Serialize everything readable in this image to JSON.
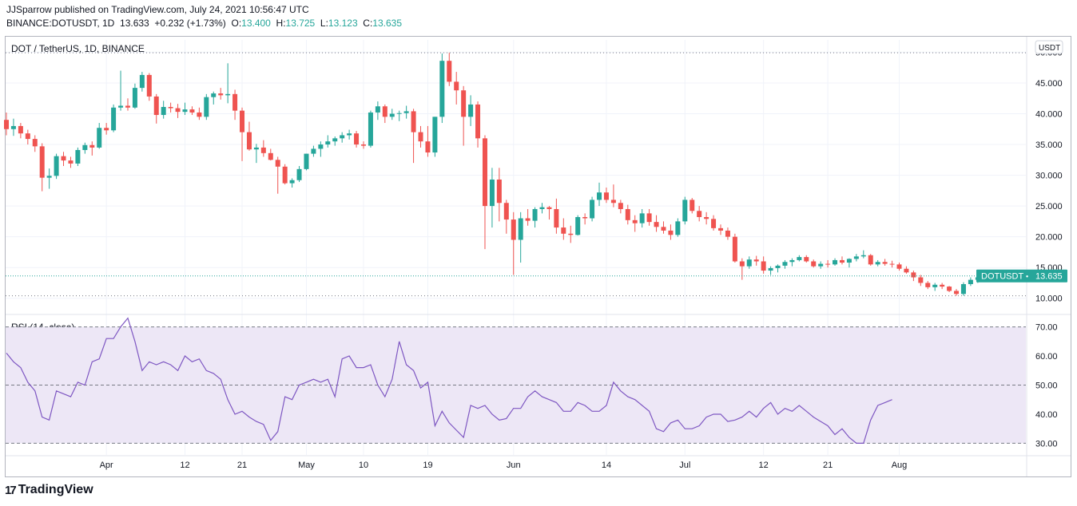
{
  "header": {
    "published_by": "JJSparrow published on TradingView.com, July 24, 2021 10:56:47 UTC",
    "symbol": "BINANCE:DOTUSDT, 1D",
    "last": "13.633",
    "change": "+0.232 (+1.73%)",
    "o_label": "O:",
    "o_value": "13.400",
    "h_label": "H:",
    "h_value": "13.725",
    "l_label": "L:",
    "l_value": "13.123",
    "c_label": "C:",
    "c_value": "13.635"
  },
  "colors": {
    "up": "#26a69a",
    "down": "#ef5350",
    "rsi_line": "#7e57c2",
    "rsi_band": "#ede7f6",
    "grid": "#f0f3fa",
    "axis_text": "#131722"
  },
  "brand": {
    "logo": "17",
    "name": "TradingView"
  },
  "chart_data": [
    {
      "type": "candlestick",
      "title": "DOT / TetherUS, 1D, BINANCE",
      "currency_badge": "USDT",
      "price_label": "DOTUSDT",
      "price_value": "13.635",
      "last_price": 13.635,
      "ylim": [
        7.5,
        52
      ],
      "y_ticks": [
        "50.000",
        "45.000",
        "40.000",
        "35.000",
        "30.000",
        "25.000",
        "20.000",
        "15.000",
        "10.000"
      ],
      "y_tick_values": [
        50,
        45,
        40,
        35,
        30,
        25,
        20,
        15,
        10
      ],
      "x_ticks": [
        "Apr",
        "12",
        "21",
        "May",
        "10",
        "19",
        "Jun",
        "14",
        "Jul",
        "12",
        "21",
        "Aug"
      ],
      "x_tick_days": [
        14,
        25,
        33,
        42,
        50,
        59,
        71,
        84,
        95,
        106,
        115,
        125
      ],
      "start_date": "2021-03-18",
      "candles": [
        [
          39.0,
          40.2,
          36.5,
          37.5
        ],
        [
          37.5,
          39.2,
          36.4,
          38.0
        ],
        [
          38.0,
          38.5,
          36.0,
          36.8
        ],
        [
          36.8,
          37.4,
          35.0,
          35.9
        ],
        [
          35.9,
          36.5,
          33.8,
          34.7
        ],
        [
          34.7,
          35.2,
          27.4,
          29.6
        ],
        [
          29.6,
          31.1,
          27.8,
          29.9
        ],
        [
          29.9,
          33.5,
          29.4,
          33.1
        ],
        [
          33.1,
          33.8,
          31.5,
          32.4
        ],
        [
          32.4,
          33.0,
          31.2,
          31.9
        ],
        [
          31.9,
          34.5,
          31.5,
          34.1
        ],
        [
          34.1,
          35.3,
          33.5,
          34.9
        ],
        [
          34.9,
          35.5,
          33.2,
          34.5
        ],
        [
          34.5,
          38.5,
          34.3,
          37.7
        ],
        [
          37.7,
          38.5,
          36.6,
          37.3
        ],
        [
          37.3,
          41.5,
          37.0,
          41.0
        ],
        [
          41.0,
          47.0,
          40.5,
          41.3
        ],
        [
          41.3,
          42.5,
          40.5,
          41.0
        ],
        [
          41.0,
          44.9,
          40.8,
          44.2
        ],
        [
          44.2,
          46.8,
          43.6,
          46.3
        ],
        [
          46.3,
          46.6,
          42.1,
          42.8
        ],
        [
          42.8,
          43.2,
          38.4,
          39.8
        ],
        [
          39.8,
          42.1,
          39.2,
          41.1
        ],
        [
          41.1,
          41.8,
          40.2,
          40.9
        ],
        [
          40.9,
          41.6,
          39.3,
          40.3
        ],
        [
          40.3,
          41.8,
          39.8,
          40.7
        ],
        [
          40.7,
          41.2,
          39.8,
          40.2
        ],
        [
          40.2,
          41.0,
          39.0,
          39.5
        ],
        [
          39.5,
          43.2,
          39.0,
          42.7
        ],
        [
          42.7,
          43.6,
          41.5,
          43.3
        ],
        [
          43.3,
          44.2,
          42.3,
          43.0
        ],
        [
          43.0,
          48.2,
          41.7,
          43.2
        ],
        [
          43.2,
          43.9,
          39.0,
          40.5
        ],
        [
          40.5,
          41.0,
          32.3,
          37.0
        ],
        [
          37.0,
          38.7,
          34.0,
          34.2
        ],
        [
          34.2,
          35.1,
          32.0,
          34.5
        ],
        [
          34.5,
          35.7,
          33.0,
          33.6
        ],
        [
          33.6,
          34.3,
          32.4,
          32.5
        ],
        [
          32.5,
          33.0,
          27.0,
          31.4
        ],
        [
          31.4,
          31.8,
          28.5,
          28.7
        ],
        [
          28.7,
          29.5,
          28.0,
          29.2
        ],
        [
          29.2,
          31.5,
          28.9,
          31.0
        ],
        [
          31.0,
          33.5,
          30.8,
          33.5
        ],
        [
          33.5,
          34.8,
          33.0,
          34.3
        ],
        [
          34.3,
          35.5,
          33.0,
          35.0
        ],
        [
          35.0,
          36.5,
          34.5,
          35.5
        ],
        [
          35.5,
          36.3,
          34.8,
          36.0
        ],
        [
          36.0,
          37.0,
          35.3,
          36.5
        ],
        [
          36.5,
          37.4,
          35.8,
          36.8
        ],
        [
          36.8,
          37.2,
          34.5,
          35.0
        ],
        [
          35.0,
          35.5,
          34.3,
          34.8
        ],
        [
          34.8,
          40.5,
          34.5,
          40.2
        ],
        [
          40.2,
          42.0,
          39.0,
          41.2
        ],
        [
          41.2,
          41.5,
          38.5,
          39.5
        ],
        [
          39.5,
          40.8,
          39.0,
          40.0
        ],
        [
          40.0,
          40.5,
          38.8,
          40.1
        ],
        [
          40.1,
          41.3,
          39.2,
          40.4
        ],
        [
          40.4,
          40.8,
          32.0,
          37.0
        ],
        [
          37.0,
          38.0,
          34.5,
          35.5
        ],
        [
          35.5,
          38.0,
          33.0,
          33.7
        ],
        [
          33.7,
          39.5,
          33.0,
          39.5
        ],
        [
          39.5,
          49.8,
          38.5,
          48.6
        ],
        [
          48.6,
          49.9,
          44.5,
          45.2
        ],
        [
          45.2,
          46.8,
          41.5,
          43.8
        ],
        [
          43.8,
          44.5,
          34.8,
          39.5
        ],
        [
          39.5,
          43.0,
          38.0,
          41.5
        ],
        [
          41.5,
          42.0,
          34.5,
          36.0
        ],
        [
          36.0,
          36.5,
          18.0,
          25.0
        ],
        [
          25.0,
          31.2,
          21.5,
          29.3
        ],
        [
          29.3,
          31.2,
          22.5,
          25.5
        ],
        [
          25.5,
          26.0,
          20.5,
          22.8
        ],
        [
          22.8,
          24.0,
          13.8,
          19.5
        ],
        [
          19.5,
          24.0,
          15.8,
          23.0
        ],
        [
          23.0,
          24.5,
          21.8,
          22.6
        ],
        [
          22.6,
          24.8,
          21.5,
          24.5
        ],
        [
          24.5,
          25.5,
          23.8,
          24.8
        ],
        [
          24.8,
          25.0,
          22.8,
          24.5
        ],
        [
          24.5,
          26.2,
          20.5,
          21.5
        ],
        [
          21.5,
          23.0,
          19.5,
          20.5
        ],
        [
          20.5,
          21.8,
          19.0,
          20.3
        ],
        [
          20.3,
          23.5,
          20.2,
          23.2
        ],
        [
          23.2,
          23.8,
          22.0,
          23.0
        ],
        [
          23.0,
          26.5,
          22.5,
          26.0
        ],
        [
          26.0,
          28.8,
          25.0,
          27.2
        ],
        [
          27.2,
          28.0,
          25.5,
          26.0
        ],
        [
          26.0,
          28.5,
          24.8,
          25.5
        ],
        [
          25.5,
          26.0,
          23.8,
          24.5
        ],
        [
          24.5,
          25.2,
          22.0,
          22.7
        ],
        [
          22.7,
          23.5,
          20.8,
          22.2
        ],
        [
          22.2,
          24.5,
          21.5,
          23.8
        ],
        [
          23.8,
          24.5,
          21.8,
          22.4
        ],
        [
          22.4,
          23.5,
          20.8,
          21.6
        ],
        [
          21.6,
          22.5,
          20.5,
          21.0
        ],
        [
          21.0,
          22.0,
          19.5,
          20.3
        ],
        [
          20.3,
          23.0,
          20.0,
          22.5
        ],
        [
          22.5,
          26.5,
          22.0,
          26.0
        ],
        [
          26.0,
          26.3,
          23.8,
          24.2
        ],
        [
          24.2,
          25.0,
          22.5,
          23.2
        ],
        [
          23.2,
          24.0,
          22.0,
          22.9
        ],
        [
          22.9,
          23.5,
          21.0,
          21.4
        ],
        [
          21.4,
          22.0,
          20.3,
          21.0
        ],
        [
          21.0,
          21.5,
          19.5,
          20.0
        ],
        [
          20.0,
          20.5,
          15.8,
          16.0
        ],
        [
          16.0,
          16.5,
          13.0,
          15.2
        ],
        [
          15.2,
          16.8,
          14.8,
          16.3
        ],
        [
          16.3,
          16.9,
          15.3,
          16.0
        ],
        [
          16.0,
          16.8,
          14.0,
          14.5
        ],
        [
          14.5,
          15.2,
          13.8,
          14.9
        ],
        [
          14.9,
          15.5,
          14.2,
          15.3
        ],
        [
          15.3,
          16.2,
          14.8,
          15.9
        ],
        [
          15.9,
          16.5,
          15.2,
          16.2
        ],
        [
          16.2,
          17.0,
          16.0,
          16.7
        ],
        [
          16.7,
          17.0,
          15.8,
          16.0
        ],
        [
          16.0,
          16.3,
          15.0,
          15.2
        ],
        [
          15.2,
          16.0,
          14.8,
          15.6
        ],
        [
          15.6,
          16.2,
          15.0,
          15.5
        ],
        [
          15.5,
          16.5,
          15.3,
          16.2
        ],
        [
          16.2,
          16.8,
          15.5,
          15.8
        ],
        [
          15.8,
          16.5,
          15.0,
          16.4
        ],
        [
          16.4,
          17.2,
          16.0,
          16.8
        ],
        [
          16.8,
          17.8,
          16.5,
          17.0
        ],
        [
          17.0,
          17.2,
          15.3,
          15.5
        ],
        [
          15.5,
          16.2,
          15.2,
          15.9
        ],
        [
          15.9,
          16.4,
          15.3,
          15.6
        ],
        [
          15.6,
          16.1,
          15.0,
          15.5
        ],
        [
          15.5,
          15.8,
          14.5,
          14.8
        ],
        [
          14.8,
          15.2,
          14.0,
          14.2
        ],
        [
          14.2,
          14.5,
          12.8,
          13.4
        ],
        [
          13.4,
          13.8,
          12.0,
          12.5
        ],
        [
          12.5,
          12.8,
          11.5,
          11.8
        ],
        [
          11.8,
          12.5,
          11.2,
          12.2
        ],
        [
          12.2,
          12.5,
          11.5,
          11.9
        ],
        [
          11.9,
          12.0,
          11.0,
          11.2
        ],
        [
          11.2,
          11.5,
          10.4,
          10.7
        ],
        [
          10.7,
          12.6,
          10.4,
          12.3
        ],
        [
          12.3,
          13.4,
          12.0,
          13.0
        ],
        [
          13.0,
          13.5,
          12.5,
          13.4
        ],
        [
          13.4,
          13.725,
          13.123,
          13.635
        ]
      ]
    },
    {
      "type": "line",
      "title": "RSI (14, close)",
      "ylim": [
        26,
        74
      ],
      "y_ticks": [
        "70.00",
        "60.00",
        "50.00",
        "40.00",
        "30.00"
      ],
      "y_tick_values": [
        70,
        60,
        50,
        40,
        30
      ],
      "bands": [
        30,
        50,
        70
      ],
      "values": [
        61,
        58,
        56,
        51,
        48,
        39,
        38,
        48,
        47,
        46,
        51,
        50,
        58,
        59,
        66,
        66,
        70,
        73,
        65,
        55,
        58,
        57,
        58,
        57,
        55,
        60,
        58,
        59,
        55,
        54,
        52,
        45,
        40,
        41,
        39,
        37.5,
        36.5,
        31,
        34,
        46,
        45,
        50,
        51,
        52,
        51,
        52,
        46,
        59,
        60,
        56,
        56,
        57,
        50,
        46,
        52,
        65,
        57,
        55,
        49,
        51,
        36,
        41,
        37,
        34.5,
        32,
        43,
        42,
        43,
        40,
        38,
        38.5,
        42,
        42,
        46,
        48,
        46,
        45,
        44,
        41,
        41,
        44,
        43,
        41,
        41,
        43,
        51,
        48,
        46,
        45,
        43,
        41,
        35,
        34,
        37,
        38,
        35,
        35,
        36,
        39,
        40,
        40,
        37.5,
        38,
        39,
        41,
        39,
        42,
        44,
        40,
        42,
        41,
        43,
        41,
        39,
        37.5,
        36,
        33,
        35,
        32,
        30,
        30,
        38,
        43,
        44,
        45
      ]
    }
  ]
}
